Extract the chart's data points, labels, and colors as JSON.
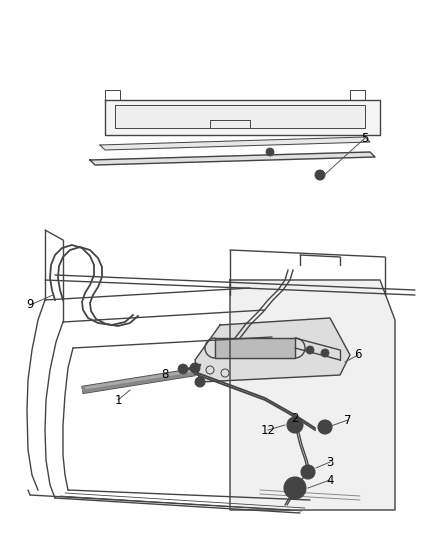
{
  "bg_color": "#ffffff",
  "line_color": "#444444",
  "label_color": "#000000",
  "fig_width": 4.38,
  "fig_height": 5.33,
  "dpi": 100
}
